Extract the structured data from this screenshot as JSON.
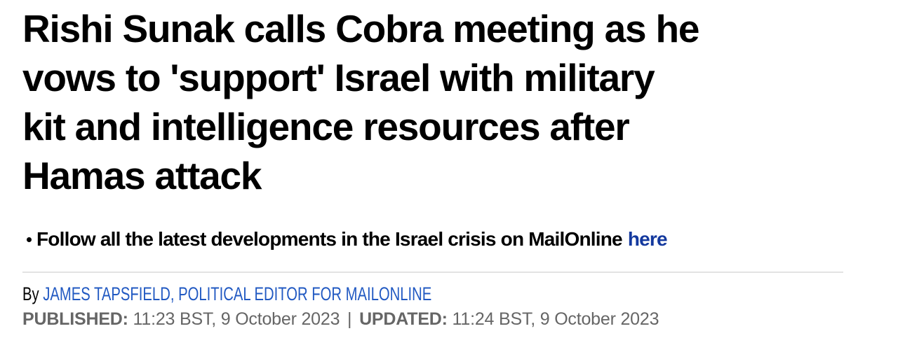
{
  "article": {
    "headline": {
      "lines": [
        "Rishi Sunak calls Cobra meeting as he",
        "vows to 'support' Israel with military",
        "kit and intelligence resources after",
        "Hamas attack"
      ]
    },
    "key_points": {
      "bullet_text": "Follow all the latest developments in the Israel crisis on MailOnline",
      "bullet_link_label": "here"
    },
    "byline": {
      "prefix": "By",
      "author": "JAMES TAPSFIELD, POLITICAL EDITOR FOR MAILONLINE"
    },
    "dates": {
      "published_label": "PUBLISHED:",
      "published_value": "11:23 BST, 9 October 2023",
      "separator": "|",
      "updated_label": "UPDATED:",
      "updated_value": "11:24 BST, 9 October 2023"
    }
  },
  "colors": {
    "headline_text": "#000000",
    "bullet_link_blue": "#14399e",
    "author_link_blue": "#2159c2",
    "meta_gray": "#666666",
    "divider_gray": "#e3e3e3",
    "background": "#ffffff"
  }
}
